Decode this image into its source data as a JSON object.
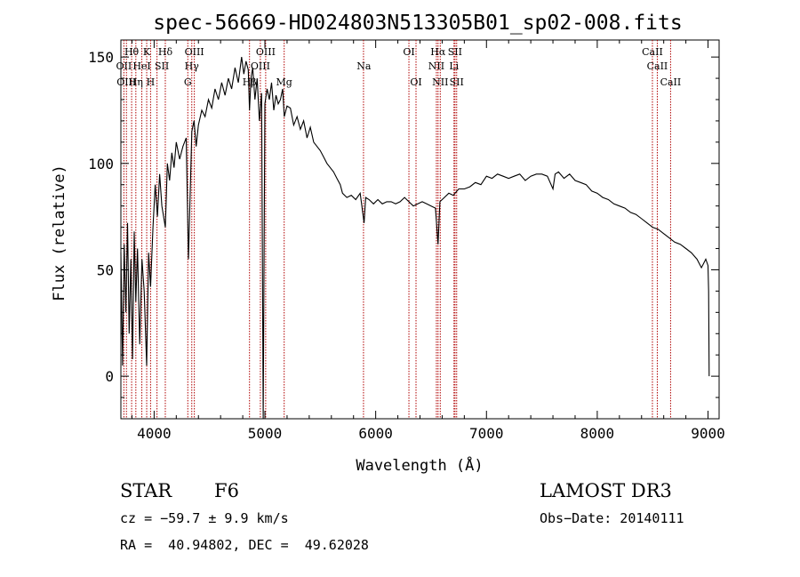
{
  "chart_data": {
    "type": "line",
    "title": "spec-56669-HD024803N513305B01_sp02-008.fits",
    "xlabel": "Wavelength (Å)",
    "ylabel": "Flux (relative)",
    "xlim": [
      3700,
      9100
    ],
    "ylim": [
      -20,
      158
    ],
    "xticks": [
      4000,
      5000,
      6000,
      7000,
      8000,
      9000
    ],
    "xtick_labels": [
      "4000",
      "5000",
      "6000",
      "7000",
      "8000",
      "9000"
    ],
    "yticks": [
      0,
      50,
      100,
      150
    ],
    "ytick_labels": [
      "0",
      "50",
      "100",
      "150"
    ],
    "series": [
      {
        "name": "flux",
        "x": [
          3700,
          3715,
          3730,
          3745,
          3760,
          3775,
          3790,
          3805,
          3820,
          3835,
          3850,
          3870,
          3890,
          3910,
          3933,
          3950,
          3968,
          3990,
          4010,
          4030,
          4050,
          4070,
          4101,
          4120,
          4140,
          4160,
          4180,
          4200,
          4230,
          4260,
          4290,
          4310,
          4340,
          4360,
          4380,
          4400,
          4430,
          4460,
          4490,
          4520,
          4550,
          4580,
          4610,
          4640,
          4670,
          4700,
          4730,
          4760,
          4790,
          4810,
          4830,
          4850,
          4861,
          4875,
          4890,
          4910,
          4930,
          4950,
          4970,
          4985,
          5000,
          5020,
          5040,
          5060,
          5080,
          5100,
          5120,
          5140,
          5160,
          5175,
          5200,
          5230,
          5260,
          5290,
          5320,
          5350,
          5380,
          5410,
          5440,
          5470,
          5500,
          5530,
          5560,
          5590,
          5620,
          5650,
          5680,
          5700,
          5740,
          5780,
          5820,
          5860,
          5895,
          5910,
          5940,
          5980,
          6020,
          6060,
          6100,
          6140,
          6180,
          6220,
          6260,
          6300,
          6340,
          6380,
          6420,
          6460,
          6500,
          6540,
          6563,
          6580,
          6620,
          6660,
          6700,
          6750,
          6800,
          6850,
          6900,
          6950,
          7000,
          7050,
          7100,
          7150,
          7200,
          7250,
          7300,
          7350,
          7400,
          7450,
          7500,
          7550,
          7600,
          7620,
          7650,
          7700,
          7750,
          7800,
          7850,
          7900,
          7950,
          8000,
          8050,
          8100,
          8150,
          8200,
          8250,
          8300,
          8350,
          8400,
          8450,
          8500,
          8550,
          8600,
          8650,
          8700,
          8750,
          8800,
          8850,
          8900,
          8940,
          8960,
          8980,
          9000,
          9005,
          9010
        ],
        "y": [
          58,
          5,
          62,
          30,
          72,
          20,
          55,
          8,
          68,
          35,
          60,
          15,
          55,
          40,
          5,
          58,
          42,
          70,
          90,
          75,
          95,
          80,
          70,
          100,
          92,
          105,
          98,
          110,
          102,
          108,
          112,
          55,
          115,
          120,
          108,
          118,
          125,
          122,
          130,
          126,
          135,
          130,
          138,
          132,
          140,
          135,
          145,
          138,
          150,
          142,
          148,
          144,
          125,
          140,
          145,
          130,
          140,
          120,
          133,
          -20,
          128,
          135,
          130,
          138,
          125,
          132,
          128,
          130,
          135,
          122,
          127,
          126,
          118,
          122,
          116,
          120,
          112,
          117,
          110,
          108,
          106,
          103,
          100,
          98,
          96,
          93,
          90,
          86,
          84,
          85,
          83,
          86,
          72,
          84,
          83,
          81,
          83,
          81,
          82,
          82,
          81,
          82,
          84,
          82,
          80,
          81,
          82,
          81,
          80,
          79,
          62,
          82,
          84,
          86,
          85,
          88,
          88,
          89,
          91,
          90,
          94,
          93,
          95,
          94,
          93,
          94,
          95,
          92,
          94,
          95,
          95,
          94,
          88,
          95,
          96,
          93,
          95,
          92,
          91,
          90,
          87,
          86,
          84,
          83,
          81,
          80,
          79,
          77,
          76,
          74,
          72,
          70,
          69,
          67,
          65,
          63,
          62,
          60,
          58,
          55,
          51,
          53,
          55,
          52,
          40,
          0
        ]
      }
    ],
    "line_markers": {
      "positions": [
        3727,
        3750,
        3797,
        3835,
        3889,
        3933,
        3968,
        4026,
        4101,
        4304,
        4340,
        4363,
        4861,
        4959,
        5007,
        5174,
        5890,
        6300,
        6364,
        6548,
        6563,
        6583,
        6707,
        6716,
        6731,
        8498,
        8542,
        8662
      ],
      "labels": [
        {
          "text": "Hθ",
          "x": 3797,
          "row": 0
        },
        {
          "text": "K",
          "x": 3933,
          "row": 0
        },
        {
          "text": "Hδ",
          "x": 4101,
          "row": 0
        },
        {
          "text": "OIII",
          "x": 4363,
          "row": 0
        },
        {
          "text": "OIII",
          "x": 5007,
          "row": 0
        },
        {
          "text": "OI",
          "x": 6300,
          "row": 0
        },
        {
          "text": "Hα",
          "x": 6563,
          "row": 0
        },
        {
          "text": "SII",
          "x": 6716,
          "row": 0
        },
        {
          "text": "CaII",
          "x": 8498,
          "row": 0
        },
        {
          "text": "OII",
          "x": 3727,
          "row": 1
        },
        {
          "text": "HeI",
          "x": 3889,
          "row": 1
        },
        {
          "text": "SII",
          "x": 4070,
          "row": 1
        },
        {
          "text": "Hγ",
          "x": 4340,
          "row": 1
        },
        {
          "text": "OIII",
          "x": 4959,
          "row": 1
        },
        {
          "text": "Na",
          "x": 5893,
          "row": 1
        },
        {
          "text": "NII",
          "x": 6548,
          "row": 1
        },
        {
          "text": "Li",
          "x": 6707,
          "row": 1
        },
        {
          "text": "CaII",
          "x": 8542,
          "row": 1
        },
        {
          "text": "OIII",
          "x": 3750,
          "row": 2
        },
        {
          "text": "Hη",
          "x": 3835,
          "row": 2
        },
        {
          "text": "H",
          "x": 3968,
          "row": 2
        },
        {
          "text": "G",
          "x": 4304,
          "row": 2
        },
        {
          "text": "Hβ",
          "x": 4861,
          "row": 2
        },
        {
          "text": "Mg",
          "x": 5174,
          "row": 2
        },
        {
          "text": "OI",
          "x": 6364,
          "row": 2
        },
        {
          "text": "NII",
          "x": 6583,
          "row": 2
        },
        {
          "text": "SII",
          "x": 6731,
          "row": 2
        },
        {
          "text": "CaII",
          "x": 8662,
          "row": 2
        }
      ]
    }
  },
  "info": {
    "object_class": "STAR",
    "subclass": "F6",
    "survey": "LAMOST DR3",
    "cz": "cz = −59.7 ± 9.9 km/s",
    "obs_date": "Obs−Date: 20140111",
    "radec": "RA =  40.94802, DEC =  49.62028"
  },
  "colors": {
    "line_marker": "#b00000",
    "spectrum": "#000000"
  }
}
